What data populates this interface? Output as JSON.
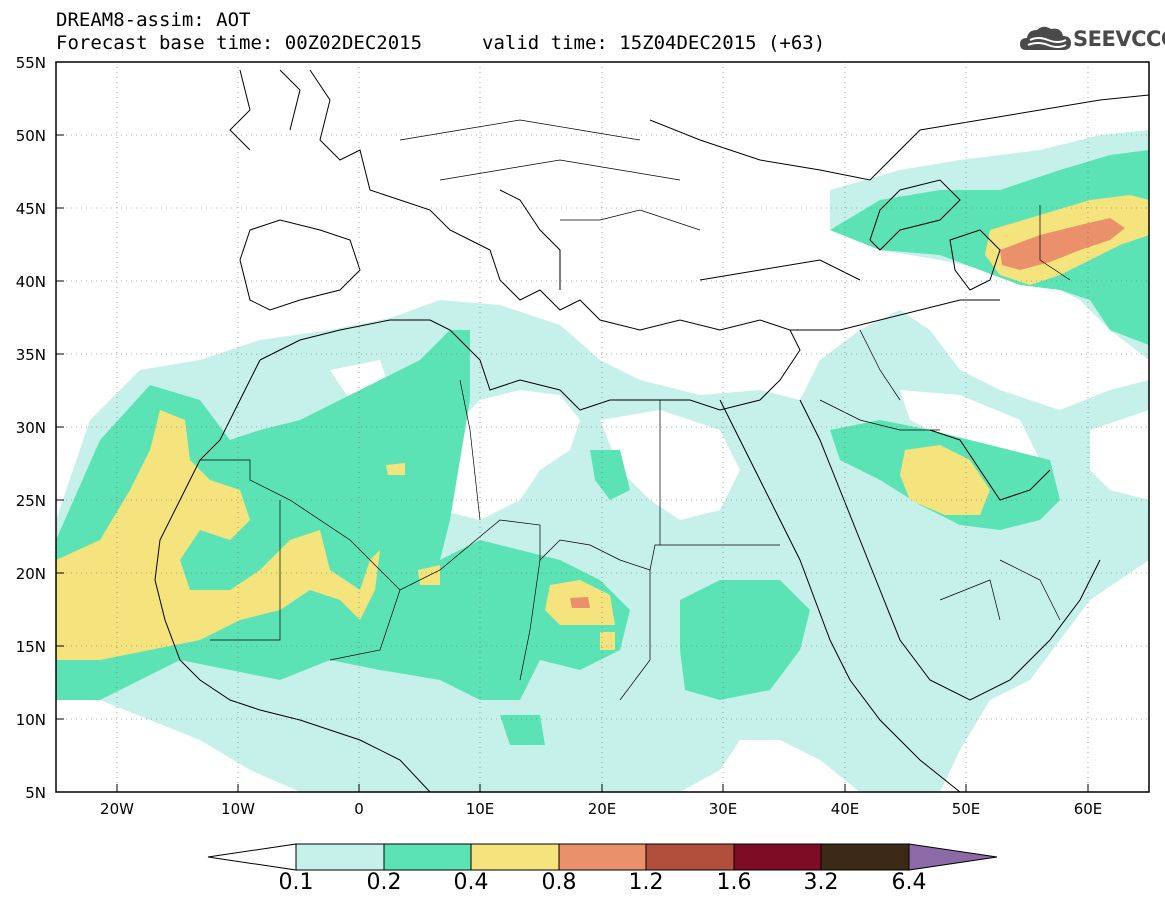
{
  "header": {
    "title_line1": "DREAM8-assim: AOT",
    "title_line2": "Forecast base time: 00Z02DEC2015",
    "valid_time": "valid time: 15Z04DEC2015 (+63)",
    "logo_text": "SEEVCCC"
  },
  "map": {
    "lat_labels": [
      "55N",
      "50N",
      "45N",
      "40N",
      "35N",
      "30N",
      "25N",
      "20N",
      "15N",
      "10N",
      "5N"
    ],
    "lon_labels": [
      "20W",
      "10W",
      "0",
      "10E",
      "20E",
      "30E",
      "40E",
      "50E",
      "60E"
    ],
    "lon_range": [
      -25,
      65
    ],
    "lat_range": [
      5,
      55
    ]
  },
  "legend": {
    "labels": [
      "0.1",
      "0.2",
      "0.4",
      "0.8",
      "1.2",
      "1.6",
      "3.2",
      "6.4"
    ],
    "colors": [
      "#c6f1ea",
      "#5be3b5",
      "#f5e37d",
      "#ea906a",
      "#b24f3c",
      "#7e0c24",
      "#3c2a17",
      "#8c6aa8"
    ]
  }
}
